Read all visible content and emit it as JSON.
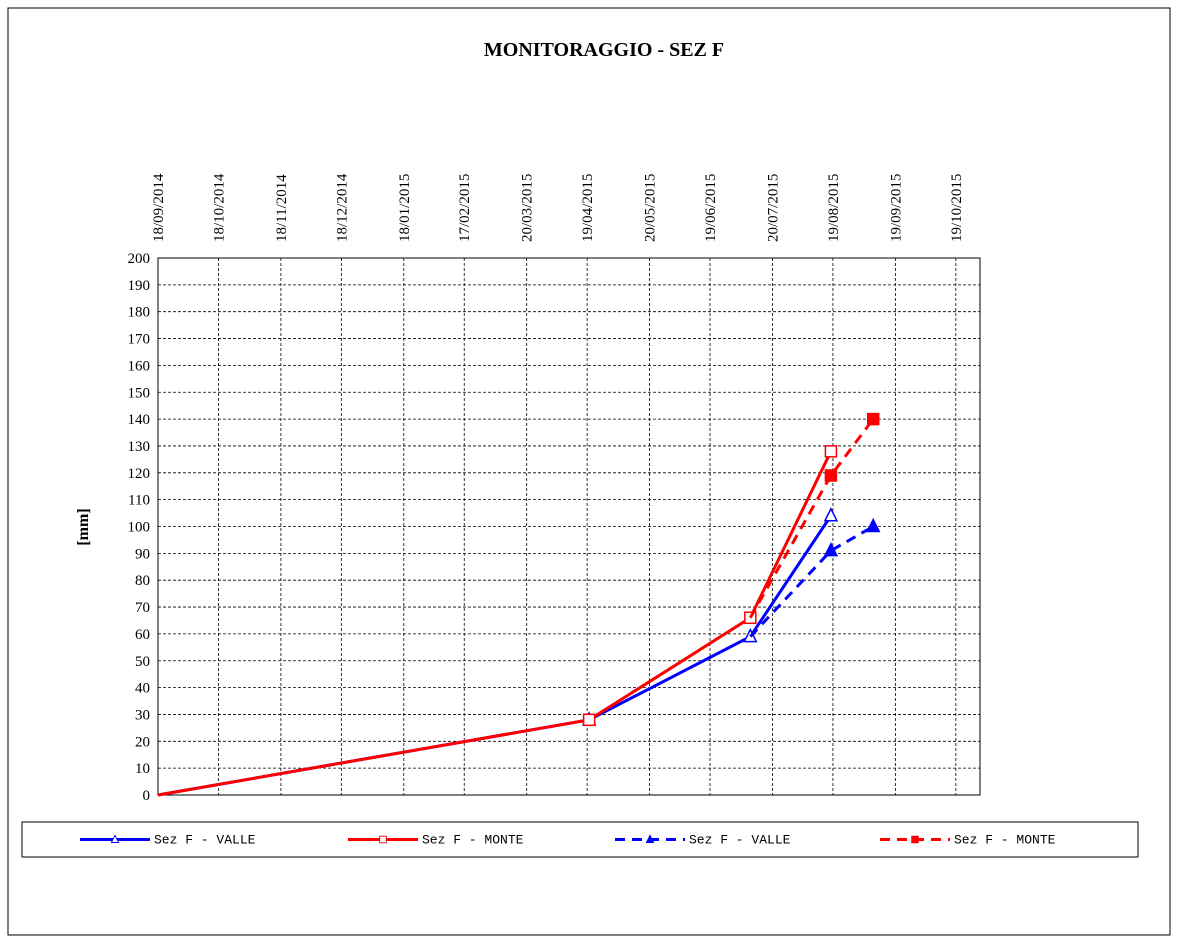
{
  "chart_data": {
    "type": "line",
    "title": "MONITORAGGIO  - SEZ F",
    "y_label": "[mm]",
    "xlim": [
      "18/09/2014",
      "31/10/2015"
    ],
    "xticks": [
      "18/09/2014",
      "18/10/2014",
      "18/11/2014",
      "18/12/2014",
      "18/01/2015",
      "17/02/2015",
      "20/03/2015",
      "19/04/2015",
      "20/05/2015",
      "19/06/2015",
      "20/07/2015",
      "19/08/2015",
      "19/09/2015",
      "19/10/2015"
    ],
    "ylim": [
      0,
      200
    ],
    "yticks": [
      0,
      10,
      20,
      30,
      40,
      50,
      60,
      70,
      80,
      90,
      100,
      110,
      120,
      130,
      140,
      150,
      160,
      170,
      180,
      190,
      200
    ],
    "grid": true,
    "series": [
      {
        "name": "Sez F - VALLE",
        "color": "#0000ff",
        "marker": "triangle-open",
        "dashed": false,
        "x": [
          "18/09/2014",
          "20/04/2015",
          "09/07/2015",
          "18/08/2015"
        ],
        "values": [
          0,
          28,
          59,
          104
        ]
      },
      {
        "name": "Sez F - MONTE",
        "color": "#ff0000",
        "marker": "square-open",
        "dashed": false,
        "x": [
          "18/09/2014",
          "20/04/2015",
          "09/07/2015",
          "18/08/2015"
        ],
        "values": [
          0,
          28,
          66,
          128
        ]
      },
      {
        "name": "Sez F - VALLE",
        "color": "#0000ff",
        "marker": "triangle",
        "dashed": true,
        "x": [
          "09/07/2015",
          "18/08/2015",
          "08/09/2015"
        ],
        "values": [
          59,
          91,
          100
        ]
      },
      {
        "name": "Sez F - MONTE",
        "color": "#ff0000",
        "marker": "square",
        "dashed": true,
        "x": [
          "09/07/2015",
          "18/08/2015",
          "08/09/2015"
        ],
        "values": [
          66,
          119,
          140
        ]
      }
    ]
  }
}
